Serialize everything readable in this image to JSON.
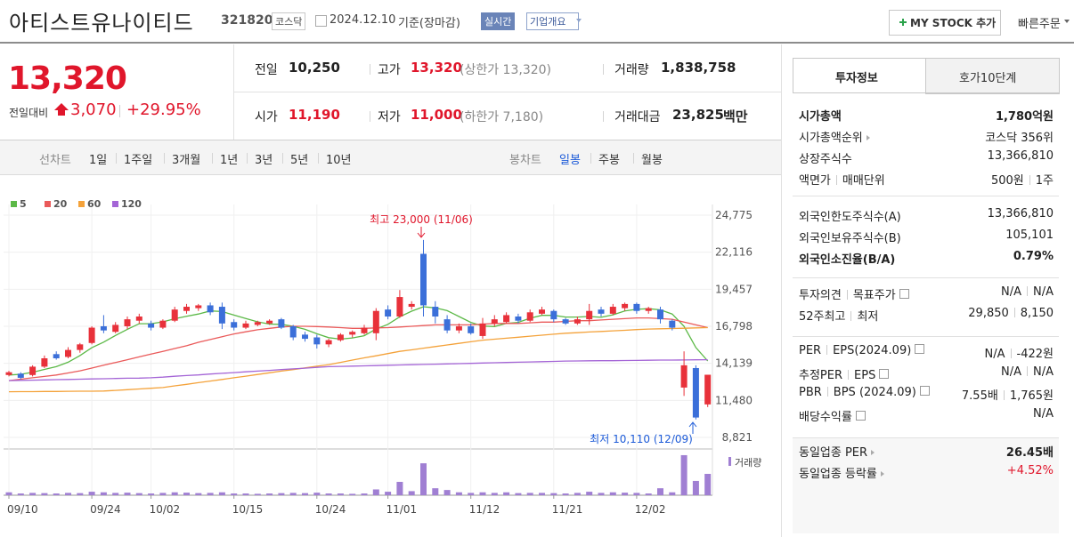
{
  "header": {
    "name": "아티스트유나이티드",
    "code": "321820",
    "market": "코스닥",
    "date": "2024.12.10",
    "basis": "기준(장마감)",
    "realtime": "실시간",
    "company_info": "기업개요",
    "my_stock": "MY STOCK 추가",
    "quick_order": "빠른주문"
  },
  "price": {
    "current": "13,320",
    "change_label": "전일대비",
    "change": "3,070",
    "change_pct": "+29.95%"
  },
  "quotes": [
    {
      "label": "전일",
      "value": "10,250"
    },
    {
      "label": "고가",
      "value": "13,320",
      "note": "(상한가 13,320)"
    },
    {
      "label": "거래량",
      "value": "1,838,758"
    },
    {
      "label": "시가",
      "value": "11,190"
    },
    {
      "label": "저가",
      "value": "11,000",
      "note": "(하한가 7,180)"
    },
    {
      "label": "거래대금",
      "value": "23,825",
      "unit": "백만"
    }
  ],
  "tabs": {
    "line_label": "선차트",
    "line": [
      "1일",
      "1주일",
      "3개월",
      "1년",
      "3년",
      "5년",
      "10년"
    ],
    "candle_label": "봉차트",
    "candle": [
      "일봉",
      "주봉",
      "월봉"
    ]
  },
  "chart_data": {
    "type": "candlestick",
    "categories": [
      "09/10",
      null,
      null,
      null,
      null,
      null,
      null,
      "09/24",
      null,
      null,
      null,
      null,
      "10/02",
      null,
      null,
      null,
      null,
      null,
      null,
      "10/15",
      null,
      null,
      null,
      null,
      null,
      null,
      "10/24",
      null,
      null,
      null,
      null,
      null,
      "11/01",
      null,
      null,
      null,
      null,
      null,
      null,
      "11/12",
      null,
      null,
      null,
      null,
      null,
      null,
      "11/21",
      null,
      null,
      null,
      null,
      null,
      null,
      "12/02",
      null,
      null,
      null,
      null,
      null,
      null
    ],
    "open": [
      13300,
      13400,
      13300,
      13900,
      14800,
      14600,
      15100,
      15600,
      16800,
      16400,
      16800,
      17200,
      17000,
      16700,
      17200,
      17900,
      18100,
      18300,
      18200,
      17100,
      16700,
      16900,
      17000,
      17300,
      16800,
      16200,
      16000,
      15500,
      15800,
      16200,
      16300,
      16300,
      18000,
      17500,
      18200,
      22000,
      18200,
      17300,
      16500,
      16800,
      16100,
      17000,
      17100,
      17500,
      17200,
      17700,
      17900,
      17300,
      17000,
      17300,
      18000,
      17700,
      18100,
      18400,
      17900,
      18000,
      17200,
      12400,
      13800,
      11190
    ],
    "high": [
      13600,
      13500,
      14000,
      14700,
      15000,
      15300,
      15600,
      16800,
      17600,
      17100,
      17500,
      17700,
      17200,
      17300,
      18200,
      18400,
      18400,
      18500,
      18500,
      17300,
      17200,
      17200,
      17300,
      17400,
      16900,
      16400,
      16200,
      15900,
      16300,
      16500,
      16900,
      18100,
      18300,
      19400,
      18600,
      23000,
      18600,
      17600,
      17000,
      17000,
      17400,
      17600,
      17800,
      17700,
      18000,
      18200,
      18000,
      17400,
      17500,
      18400,
      18200,
      18400,
      18500,
      18500,
      18200,
      18200,
      17300,
      15000,
      14000,
      13320
    ],
    "low": [
      13200,
      13000,
      13200,
      13800,
      14400,
      14500,
      14900,
      15500,
      16300,
      16300,
      16600,
      17000,
      16500,
      16600,
      17100,
      17700,
      17900,
      17600,
      16600,
      16500,
      16600,
      16800,
      16900,
      16600,
      15800,
      15700,
      15200,
      15300,
      15700,
      16000,
      16200,
      15800,
      17300,
      17400,
      18000,
      17500,
      17000,
      16300,
      16300,
      16200,
      15900,
      16800,
      17000,
      17000,
      17100,
      17600,
      17100,
      16900,
      16900,
      16900,
      17500,
      17600,
      17900,
      17700,
      17700,
      17000,
      16500,
      11800,
      10110,
      11000
    ],
    "close": [
      13500,
      13100,
      13900,
      14500,
      14500,
      15100,
      15500,
      16700,
      16500,
      16900,
      17300,
      17500,
      16700,
      17200,
      18000,
      18200,
      18300,
      17800,
      17000,
      16700,
      17000,
      17100,
      17200,
      16700,
      16000,
      15900,
      15500,
      15800,
      16200,
      16400,
      16700,
      17900,
      17500,
      18900,
      18400,
      18300,
      17500,
      16500,
      16800,
      16300,
      17000,
      17300,
      17600,
      17200,
      17800,
      18000,
      17300,
      17000,
      17300,
      17900,
      17700,
      18200,
      18400,
      17900,
      18100,
      17300,
      16700,
      14000,
      10250,
      13320
    ],
    "up_color": "#e8313a",
    "down_color": "#3b6fd9",
    "series": [
      {
        "name": "5",
        "color": "#5cb947",
        "values": [
          13300,
          13350,
          13500,
          13700,
          13900,
          14220,
          14700,
          15260,
          15660,
          16140,
          16580,
          16980,
          16980,
          17120,
          17340,
          17520,
          17680,
          17900,
          17860,
          17600,
          17360,
          17120,
          16960,
          16940,
          16800,
          16580,
          16260,
          15980,
          15880,
          15960,
          16120,
          16600,
          16940,
          17480,
          17880,
          18200,
          18120,
          17920,
          17500,
          17080,
          16820,
          16780,
          17000,
          17080,
          17380,
          17580,
          17580,
          17460,
          17460,
          17500,
          17440,
          17620,
          17900,
          18020,
          18060,
          17980,
          17680,
          16800,
          15270,
          14310
        ]
      },
      {
        "name": "20",
        "color": "#ea5a5a",
        "values": [
          12900,
          13000,
          13100,
          13200,
          13300,
          13450,
          13600,
          13800,
          14000,
          14200,
          14400,
          14600,
          14800,
          15000,
          15200,
          15400,
          15650,
          15850,
          16050,
          16250,
          16400,
          16550,
          16650,
          16750,
          16800,
          16800,
          16780,
          16750,
          16700,
          16650,
          16650,
          16680,
          16700,
          16750,
          16800,
          16850,
          16900,
          16900,
          16900,
          16900,
          16950,
          17000,
          17000,
          17000,
          17050,
          17100,
          17100,
          17150,
          17200,
          17200,
          17250,
          17300,
          17350,
          17400,
          17400,
          17350,
          17300,
          17100,
          16900,
          16700
        ]
      },
      {
        "name": "60",
        "color": "#f4a23a",
        "values": [
          12100,
          12110,
          12110,
          12120,
          12120,
          12130,
          12140,
          12140,
          12150,
          12200,
          12250,
          12300,
          12350,
          12400,
          12520,
          12630,
          12750,
          12870,
          12980,
          13100,
          13220,
          13340,
          13460,
          13580,
          13690,
          13810,
          13930,
          14050,
          14210,
          14370,
          14530,
          14680,
          14840,
          15000,
          15110,
          15230,
          15340,
          15460,
          15570,
          15690,
          15800,
          15870,
          15940,
          16010,
          16090,
          16160,
          16230,
          16300,
          16340,
          16390,
          16430,
          16470,
          16510,
          16560,
          16600,
          16620,
          16640,
          16660,
          16680,
          16700
        ]
      },
      {
        "name": "120",
        "color": "#a465d6",
        "values": [
          12900,
          12920,
          12930,
          12950,
          12970,
          12980,
          13000,
          13020,
          13030,
          13050,
          13070,
          13080,
          13100,
          13150,
          13210,
          13260,
          13310,
          13370,
          13420,
          13470,
          13530,
          13580,
          13630,
          13690,
          13740,
          13790,
          13850,
          13900,
          13920,
          13940,
          13960,
          13980,
          14000,
          14020,
          14040,
          14060,
          14080,
          14100,
          14120,
          14140,
          14160,
          14180,
          14200,
          14220,
          14240,
          14260,
          14280,
          14300,
          14310,
          14320,
          14330,
          14330,
          14340,
          14350,
          14360,
          14370,
          14370,
          14380,
          14390,
          14400
        ]
      }
    ],
    "volume": {
      "name": "거래량",
      "color": "#a07fd3",
      "axis": "y2",
      "values": [
        250000,
        150000,
        200000,
        180000,
        150000,
        200000,
        180000,
        300000,
        250000,
        200000,
        220000,
        180000,
        150000,
        200000,
        250000,
        220000,
        180000,
        200000,
        250000,
        150000,
        150000,
        120000,
        150000,
        180000,
        200000,
        180000,
        220000,
        150000,
        150000,
        120000,
        150000,
        500000,
        300000,
        1150000,
        350000,
        2750000,
        600000,
        450000,
        250000,
        200000,
        250000,
        200000,
        250000,
        180000,
        200000,
        200000,
        180000,
        150000,
        200000,
        300000,
        200000,
        250000,
        220000,
        200000,
        150000,
        600000,
        250000,
        3450000,
        1230000,
        1838758
      ]
    },
    "ylim": [
      8821,
      24775
    ],
    "yticks": [
      {
        "value": 8821,
        "label": "8,821"
      },
      {
        "value": 11480,
        "label": "11,480"
      },
      {
        "value": 14139,
        "label": "14,139"
      },
      {
        "value": 16798,
        "label": "16,798"
      },
      {
        "value": 19457,
        "label": "19,457"
      },
      {
        "value": 22116,
        "label": "22,116"
      },
      {
        "value": 24775,
        "label": "24,775"
      }
    ],
    "y2lim": [
      0,
      3600000
    ],
    "grid": true,
    "annotations": [
      {
        "text": "최고 23,000 (11/06)",
        "color": "#e0162b"
      },
      {
        "text": "최저 10,110 (12/09)",
        "color": "#1d5bd8"
      }
    ]
  },
  "sidebar": {
    "tabs": [
      "투자정보",
      "호가10단계"
    ],
    "groups": [
      [
        {
          "labels": [
            "시가총액"
          ],
          "values": [
            "1,780억원"
          ]
        },
        {
          "labels": [
            "시가총액순위"
          ],
          "values": [
            "코스닥 356위"
          ]
        },
        {
          "labels": [
            "상장주식수"
          ],
          "values": [
            "13,366,810"
          ]
        },
        {
          "labels": [
            "액면가",
            "매매단위"
          ],
          "values": [
            "500원",
            "1주"
          ]
        }
      ],
      [
        {
          "labels": [
            "외국인한도주식수(A)"
          ],
          "values": [
            "13,366,810"
          ]
        },
        {
          "labels": [
            "외국인보유주식수(B)"
          ],
          "values": [
            "105,101"
          ]
        },
        {
          "labels": [
            "외국인소진율(B/A)"
          ],
          "values": [
            "0.79%"
          ]
        }
      ],
      [
        {
          "labels": [
            "투자의견",
            "목표주가"
          ],
          "values": [
            "N/A",
            "N/A"
          ]
        },
        {
          "labels": [
            "52주최고",
            "최저"
          ],
          "values": [
            "29,850",
            "8,150"
          ]
        }
      ],
      [
        {
          "labels": [
            "PER",
            "EPS(2024.09)"
          ],
          "values": [
            "N/A",
            "-422원"
          ]
        },
        {
          "labels": [
            "추정PER",
            "EPS"
          ],
          "values": [
            "N/A",
            "N/A"
          ]
        },
        {
          "labels": [
            "PBR",
            "BPS (2024.09)"
          ],
          "values": [
            "7.55배",
            "1,765원"
          ]
        },
        {
          "labels": [
            "배당수익률"
          ],
          "values": [
            "N/A"
          ]
        }
      ],
      [
        {
          "labels": [
            "동일업종 PER"
          ],
          "values": [
            "26.45배"
          ]
        },
        {
          "labels": [
            "동일업종 등락률"
          ],
          "values": [
            "+4.52%"
          ]
        }
      ]
    ]
  }
}
